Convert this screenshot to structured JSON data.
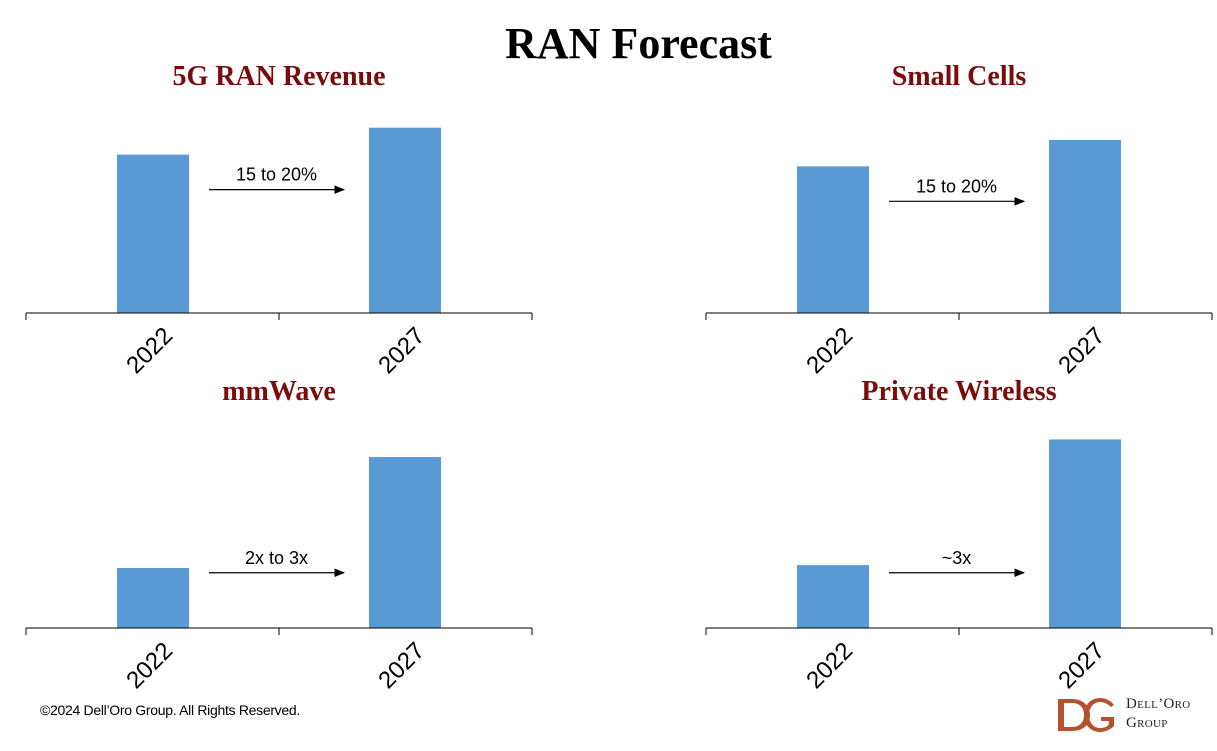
{
  "title": "RAN Forecast",
  "colors": {
    "bar": "#5B9BD5",
    "panel_title": "#7B0C0C",
    "axis": "#000000",
    "logo": "#B5522E"
  },
  "chart_data": [
    {
      "type": "bar",
      "title": "5G RAN Revenue",
      "categories": [
        "2022",
        "2027"
      ],
      "values": [
        1.0,
        1.17
      ],
      "ylim": [
        0,
        1.25
      ],
      "grid": false,
      "annotation": {
        "text": "15 to 20%",
        "from": "2022",
        "to": "2027"
      }
    },
    {
      "type": "bar",
      "title": "Small Cells",
      "categories": [
        "2022",
        "2027"
      ],
      "values": [
        1.0,
        1.18
      ],
      "ylim": [
        0,
        1.35
      ],
      "grid": false,
      "annotation": {
        "text": "15 to 20%",
        "from": "2022",
        "to": "2027"
      }
    },
    {
      "type": "bar",
      "title": "mmWave",
      "categories": [
        "2022",
        "2027"
      ],
      "values": [
        1.0,
        2.85
      ],
      "ylim": [
        0,
        3.3
      ],
      "grid": false,
      "annotation": {
        "text": "2x to 3x",
        "from": "2022",
        "to": "2027"
      }
    },
    {
      "type": "bar",
      "title": "Private Wireless",
      "categories": [
        "2022",
        "2027"
      ],
      "values": [
        1.0,
        3.0
      ],
      "ylim": [
        0,
        3.15
      ],
      "grid": false,
      "annotation": {
        "text": "~3x",
        "from": "2022",
        "to": "2027"
      }
    }
  ],
  "footer": {
    "copyright": "©2024 Dell’Oro Group. All Rights Reserved.",
    "logo_line1": "Dell’Oro",
    "logo_line2": "Group"
  }
}
